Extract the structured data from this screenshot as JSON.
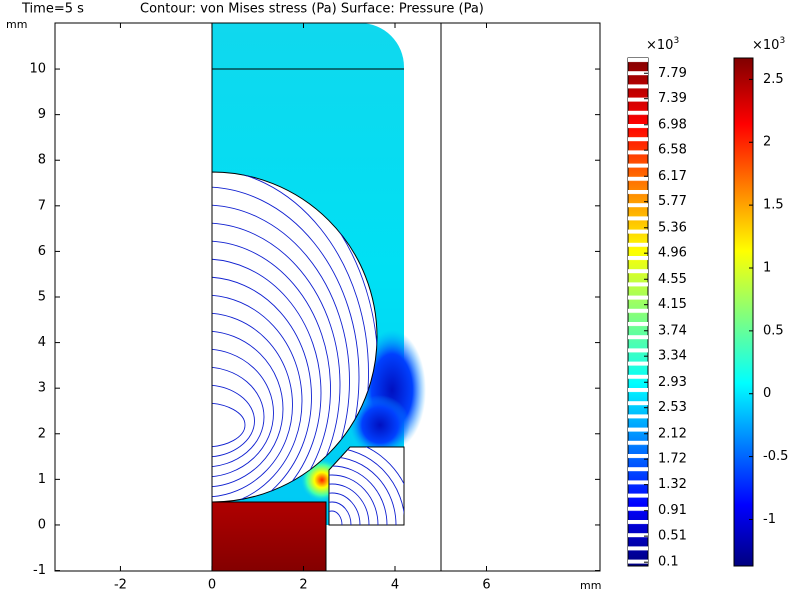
{
  "chart_data": {
    "type": "field",
    "time_label": "Time=5 s",
    "title": "Contour: von Mises stress (Pa)  Surface: Pressure (Pa)",
    "y_unit": "mm",
    "x_unit": "mm",
    "xlim": [
      -3.43,
      8.48
    ],
    "xticks": [
      -2,
      0,
      2,
      4,
      6
    ],
    "ylim": [
      -1.01,
      11.01
    ],
    "yticks": [
      -1,
      0,
      1,
      2,
      3,
      4,
      5,
      6,
      7,
      8,
      9,
      10
    ],
    "contour_colorbar": {
      "multiplier": "×10",
      "exponent": "3",
      "lim": [
        0.04,
        8.03
      ],
      "ticks": [
        0.1,
        0.51,
        0.91,
        1.32,
        1.72,
        2.12,
        2.53,
        2.93,
        3.34,
        3.74,
        4.15,
        4.55,
        4.96,
        5.36,
        5.77,
        6.17,
        6.58,
        6.98,
        7.39,
        7.79
      ]
    },
    "surface_colorbar": {
      "multiplier": "×10",
      "exponent": "3",
      "lim": [
        -1.37,
        2.67
      ],
      "ticks": [
        -1,
        -0.5,
        0,
        0.5,
        1,
        1.5,
        2,
        2.5
      ]
    }
  }
}
